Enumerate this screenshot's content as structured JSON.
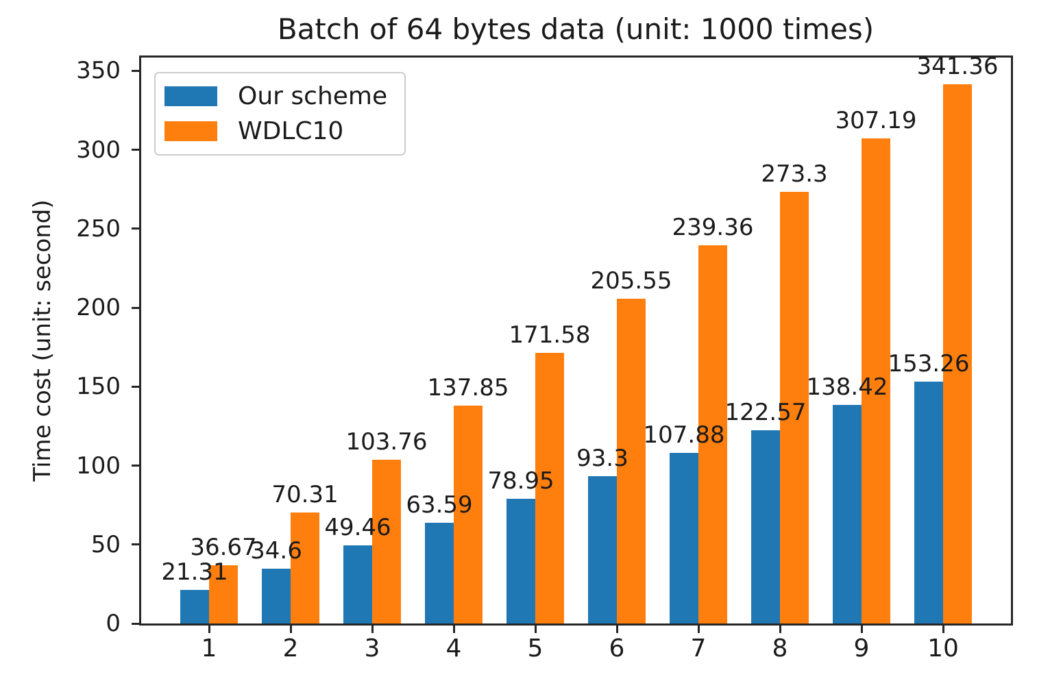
{
  "chart_data": {
    "type": "bar",
    "title": "Batch of 64 bytes data (unit: 1000 times)",
    "xlabel": "",
    "ylabel": "Time cost (unit: second)",
    "categories": [
      "1",
      "2",
      "3",
      "4",
      "5",
      "6",
      "7",
      "8",
      "9",
      "10"
    ],
    "series": [
      {
        "name": "Our scheme",
        "color": "#1f77b4",
        "values": [
          21.31,
          34.6,
          49.46,
          63.59,
          78.95,
          93.3,
          107.88,
          122.57,
          138.42,
          153.26
        ],
        "labels": [
          "21.31",
          "34.6",
          "49.46",
          "63.59",
          "78.95",
          "93.3",
          "107.88",
          "122.57",
          "138.42",
          "153.26"
        ]
      },
      {
        "name": "WDLC10",
        "color": "#ff7f0e",
        "values": [
          36.67,
          70.31,
          103.76,
          137.85,
          171.58,
          205.55,
          239.36,
          273.3,
          307.19,
          341.36
        ],
        "labels": [
          "36.67",
          "70.31",
          "103.76",
          "137.85",
          "171.58",
          "205.55",
          "239.36",
          "273.3",
          "307.19",
          "341.36"
        ]
      }
    ],
    "yticks": [
      "0",
      "50",
      "100",
      "150",
      "200",
      "250",
      "300",
      "350"
    ],
    "ylim": [
      0,
      358.4
    ],
    "bar_value_labels": true,
    "grid": false,
    "legend_position": "upper left",
    "axis_color": "#262626"
  }
}
